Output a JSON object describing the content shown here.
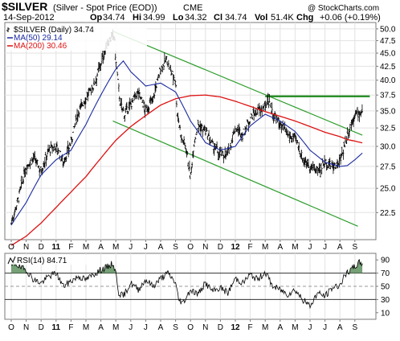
{
  "header": {
    "symbol": "$SILVER",
    "description": "(Silver - Spot Price (EOD))",
    "exchange": "CME",
    "date": "14-Sep-2012",
    "stats": [
      {
        "label": "Op",
        "value": "34.74"
      },
      {
        "label": "Hi",
        "value": "34.99"
      },
      {
        "label": "Lo",
        "value": "34.32"
      },
      {
        "label": "Cl",
        "value": "34.74"
      },
      {
        "label": "Vol",
        "value": "51.4K"
      },
      {
        "label": "Chg",
        "value": "+0.06 (+0.19%)"
      }
    ],
    "watermark": "@ StockCharts.com"
  },
  "legend": {
    "price": "$SILVER (Daily) 34.74",
    "ma50": "MA(50) 29.14",
    "ma200": "MA(200) 30.46"
  },
  "rsi": {
    "label": "RSI(14) 84.71",
    "ticks": [
      "90",
      "70",
      "50",
      "30",
      "10"
    ]
  },
  "x_axis": {
    "labels": [
      "O",
      "N",
      "D",
      "11",
      "F",
      "M",
      "A",
      "M",
      "J",
      "J",
      "A",
      "S",
      "O",
      "N",
      "D",
      "12",
      "F",
      "M",
      "A",
      "M",
      "J",
      "J",
      "A",
      "S"
    ],
    "bold_labels": [
      "11",
      "12"
    ]
  },
  "colors": {
    "price_bars": "#000000",
    "ma50": "#1a2aa0",
    "ma200": "#dd1111",
    "channel": "#2e9e2e",
    "resistance": "#1d8a1d",
    "rsi_line": "#000000",
    "rsi_fill": "#5e8f5e",
    "grid": "#e2e2e2"
  },
  "chart_data": [
    {
      "type": "line",
      "title": "$SILVER (Silver - Spot Price (EOD))",
      "x_labels": [
        "O",
        "N",
        "D",
        "11",
        "F",
        "M",
        "A",
        "M",
        "J",
        "J",
        "A",
        "S",
        "O",
        "N",
        "D",
        "12",
        "F",
        "M",
        "A",
        "M",
        "J",
        "J",
        "A",
        "S"
      ],
      "y_ticks": [
        "50.0",
        "47.5",
        "45.0",
        "42.5",
        "40.0",
        "37.5",
        "35.0",
        "32.5",
        "30.0",
        "27.5",
        "25.0",
        "22.5"
      ],
      "ylim": [
        20,
        51.4
      ],
      "log_scale": true,
      "grid": true,
      "legend_position": "top-left",
      "series": [
        {
          "name": "$SILVER (Daily) 34.74",
          "style": "ohlc",
          "x": [
            0,
            0.5,
            1,
            1.5,
            2,
            2.5,
            3,
            3.5,
            4,
            4.5,
            5,
            5.5,
            6,
            6.5,
            6.9,
            7,
            7.3,
            7.6,
            8,
            8.5,
            9,
            9.5,
            10,
            10.4,
            10.6,
            11,
            11.1,
            11.4,
            11.7,
            12,
            12.2,
            12.5,
            13,
            13.5,
            14,
            14.5,
            15,
            15.5,
            16,
            16.5,
            17,
            17.2,
            17.5,
            18,
            18.5,
            19,
            19.5,
            20,
            20.5,
            21,
            21.5,
            22,
            22.5,
            23,
            23.3,
            23.5
          ],
          "y": [
            21.5,
            24,
            27.5,
            28.5,
            27,
            29.5,
            30,
            28,
            30.5,
            35,
            37,
            39,
            43,
            47.5,
            48.5,
            43.5,
            36,
            34.5,
            36,
            38,
            35,
            37,
            42,
            43.8,
            42,
            40,
            35,
            31,
            30,
            26,
            30,
            33,
            32,
            30,
            29,
            29,
            32.5,
            31.5,
            34,
            35,
            35.5,
            37.2,
            34.5,
            33,
            31.5,
            31,
            28.5,
            27.5,
            27,
            28,
            27.5,
            28,
            31.5,
            34.5,
            34.7,
            34.74
          ]
        },
        {
          "name": "MA(50) 29.14",
          "x": [
            0,
            1,
            2,
            3,
            4,
            5,
            6,
            7,
            7.5,
            8,
            9,
            10,
            11,
            12,
            13,
            14,
            15,
            16,
            17,
            18,
            19,
            20,
            21,
            22,
            22.5,
            23,
            23.5
          ],
          "y": [
            21.3,
            23.5,
            26.5,
            28.3,
            29.5,
            33,
            37.5,
            42,
            43.5,
            41.5,
            39,
            39.5,
            38,
            33.5,
            30.5,
            29.5,
            30,
            32.8,
            34.5,
            33.5,
            32,
            29.5,
            28,
            27.5,
            27.6,
            28.3,
            29.14
          ]
        },
        {
          "name": "MA(200) 30.46",
          "x": [
            0,
            1,
            2,
            3,
            4,
            5,
            6,
            7,
            8,
            9,
            10,
            11,
            12,
            13,
            14,
            15,
            16,
            17,
            18,
            19,
            20,
            21,
            22,
            22.5,
            23,
            23.5
          ],
          "y": [
            19.5,
            20.3,
            21.5,
            23,
            24.6,
            26.3,
            28.5,
            30.8,
            32.7,
            34.3,
            35.9,
            36.9,
            37.4,
            37.5,
            37.2,
            36.5,
            35.7,
            34.9,
            34.2,
            33.5,
            32.7,
            31.9,
            31.3,
            30.9,
            30.7,
            30.46
          ]
        }
      ],
      "trendlines": [
        {
          "name": "channel-upper",
          "x": [
            6.8,
            23.5
          ],
          "y": [
            49.5,
            31.5
          ]
        },
        {
          "name": "channel-lower",
          "x": [
            6.8,
            23.2
          ],
          "y": [
            33.5,
            21.2
          ]
        },
        {
          "name": "resistance",
          "x": [
            17.0,
            24.0
          ],
          "y": [
            37.3,
            37.3
          ]
        }
      ]
    },
    {
      "type": "line",
      "title": "RSI(14) 84.71",
      "x_labels": [
        "O",
        "N",
        "D",
        "11",
        "F",
        "M",
        "A",
        "M",
        "J",
        "J",
        "A",
        "S",
        "O",
        "N",
        "D",
        "12",
        "F",
        "M",
        "A",
        "M",
        "J",
        "J",
        "A",
        "S"
      ],
      "y_ticks": [
        "90",
        "70",
        "50",
        "30",
        "10"
      ],
      "ylim": [
        0,
        100
      ],
      "grid": true,
      "series": [
        {
          "name": "RSI(14) 84.71",
          "x": [
            0,
            0.3,
            0.6,
            1,
            1.5,
            2,
            2.5,
            3,
            3.5,
            4,
            4.5,
            5,
            5.5,
            6,
            6.5,
            6.8,
            7,
            7.2,
            7.5,
            8,
            8.5,
            9,
            9.5,
            10,
            10.5,
            11,
            11.2,
            11.5,
            12,
            12.5,
            13,
            13.5,
            14,
            14.5,
            15,
            15.5,
            16,
            16.5,
            17,
            17.5,
            18,
            18.5,
            19,
            19.5,
            20,
            20.5,
            21,
            21.5,
            22,
            22.3,
            22.6,
            23,
            23.3,
            23.5
          ],
          "y": [
            80,
            85,
            78,
            75,
            60,
            55,
            65,
            70,
            50,
            58,
            65,
            60,
            68,
            75,
            80,
            85,
            70,
            40,
            35,
            55,
            45,
            60,
            50,
            62,
            70,
            55,
            30,
            25,
            45,
            38,
            55,
            42,
            48,
            40,
            62,
            55,
            68,
            60,
            72,
            50,
            45,
            38,
            45,
            30,
            20,
            40,
            35,
            48,
            52,
            65,
            72,
            80,
            86,
            84.71
          ]
        }
      ]
    }
  ]
}
